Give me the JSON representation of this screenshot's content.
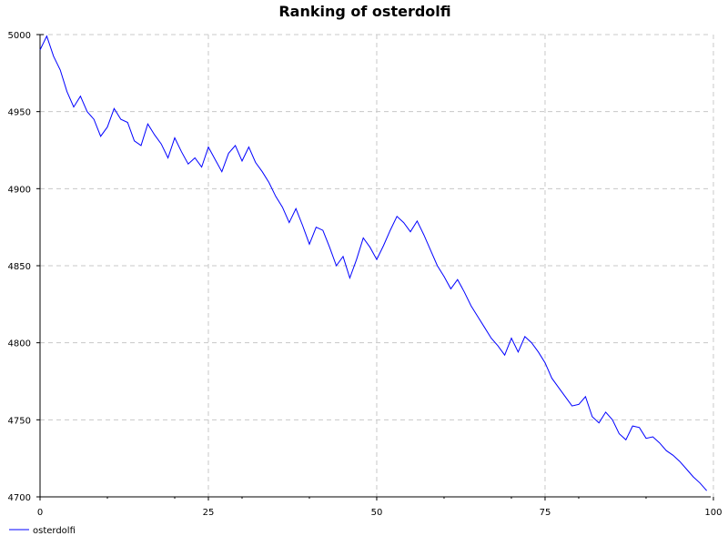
{
  "chart_data": {
    "type": "line",
    "title": "Ranking of osterdolfi",
    "xlabel": "",
    "ylabel": "",
    "xlim": [
      0,
      99
    ],
    "ylim": [
      4700,
      5000
    ],
    "x_ticks": [
      0,
      25,
      50,
      75,
      100
    ],
    "y_ticks": [
      4700,
      4750,
      4800,
      4850,
      4900,
      4950,
      5000
    ],
    "grid": true,
    "legend": "bottom-left",
    "series": [
      {
        "name": "osterdolfi",
        "color": "#0000ff",
        "x": [
          0,
          1,
          2,
          3,
          4,
          5,
          6,
          7,
          8,
          9,
          10,
          11,
          12,
          13,
          14,
          15,
          16,
          17,
          18,
          19,
          20,
          21,
          22,
          23,
          24,
          25,
          26,
          27,
          28,
          29,
          30,
          31,
          32,
          33,
          34,
          35,
          36,
          37,
          38,
          39,
          40,
          41,
          42,
          43,
          44,
          45,
          46,
          47,
          48,
          49,
          50,
          51,
          52,
          53,
          54,
          55,
          56,
          57,
          58,
          59,
          60,
          61,
          62,
          63,
          64,
          65,
          66,
          67,
          68,
          69,
          70,
          71,
          72,
          73,
          74,
          75,
          76,
          77,
          78,
          79,
          80,
          81,
          82,
          83,
          84,
          85,
          86,
          87,
          88,
          89,
          90,
          91,
          92,
          93,
          94,
          95,
          96,
          97,
          98,
          99
        ],
        "values": [
          4990,
          4999,
          4986,
          4977,
          4963,
          4953,
          4960,
          4950,
          4945,
          4934,
          4940,
          4952,
          4945,
          4943,
          4931,
          4928,
          4942,
          4935,
          4929,
          4920,
          4933,
          4924,
          4916,
          4920,
          4914,
          4927,
          4919,
          4911,
          4923,
          4928,
          4918,
          4927,
          4917,
          4911,
          4904,
          4895,
          4888,
          4878,
          4887,
          4876,
          4864,
          4875,
          4873,
          4862,
          4850,
          4856,
          4842,
          4854,
          4868,
          4862,
          4854,
          4863,
          4873,
          4882,
          4878,
          4872,
          4879,
          4870,
          4860,
          4850,
          4843,
          4835,
          4841,
          4833,
          4824,
          4817,
          4810,
          4803,
          4798,
          4792,
          4803,
          4794,
          4804,
          4800,
          4794,
          4787,
          4777,
          4771,
          4765,
          4759,
          4760,
          4765,
          4752,
          4748,
          4755,
          4750,
          4741,
          4737,
          4746,
          4745,
          4738,
          4739,
          4735,
          4730,
          4727,
          4723,
          4718,
          4713,
          4709,
          4704
        ]
      }
    ]
  }
}
